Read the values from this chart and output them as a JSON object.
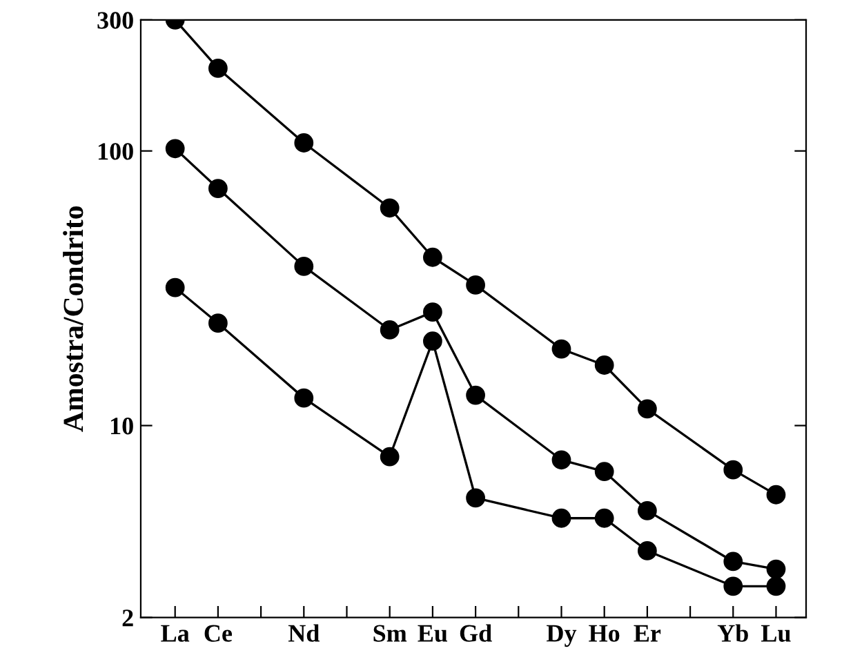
{
  "chart_data": {
    "type": "line",
    "ylabel": "Amostra/Condrito",
    "categories": [
      "La",
      "Ce",
      null,
      "Nd",
      null,
      "Sm",
      "Eu",
      "Gd",
      null,
      "Dy",
      "Ho",
      "Er",
      null,
      "Yb",
      "Lu"
    ],
    "series": [
      {
        "color": "#000000",
        "values": [
          300,
          200,
          null,
          107,
          null,
          62,
          41,
          32.5,
          null,
          19,
          16.6,
          11.5,
          null,
          6.9,
          5.6
        ]
      },
      {
        "color": "#000000",
        "values": [
          102,
          73,
          null,
          38,
          null,
          22.3,
          25.9,
          12.9,
          null,
          7.5,
          6.8,
          4.9,
          null,
          3.2,
          3.0
        ]
      },
      {
        "color": "#000000",
        "values": [
          31.8,
          23.6,
          null,
          12.6,
          null,
          7.7,
          20.3,
          5.45,
          null,
          4.6,
          4.6,
          3.5,
          null,
          2.6,
          2.6
        ]
      }
    ],
    "log": true,
    "ylim": [
      2,
      300
    ],
    "yticks": [
      2,
      10,
      100,
      300
    ],
    "marker": "circle",
    "line_style": "solid",
    "grid": false,
    "legend": false
  }
}
